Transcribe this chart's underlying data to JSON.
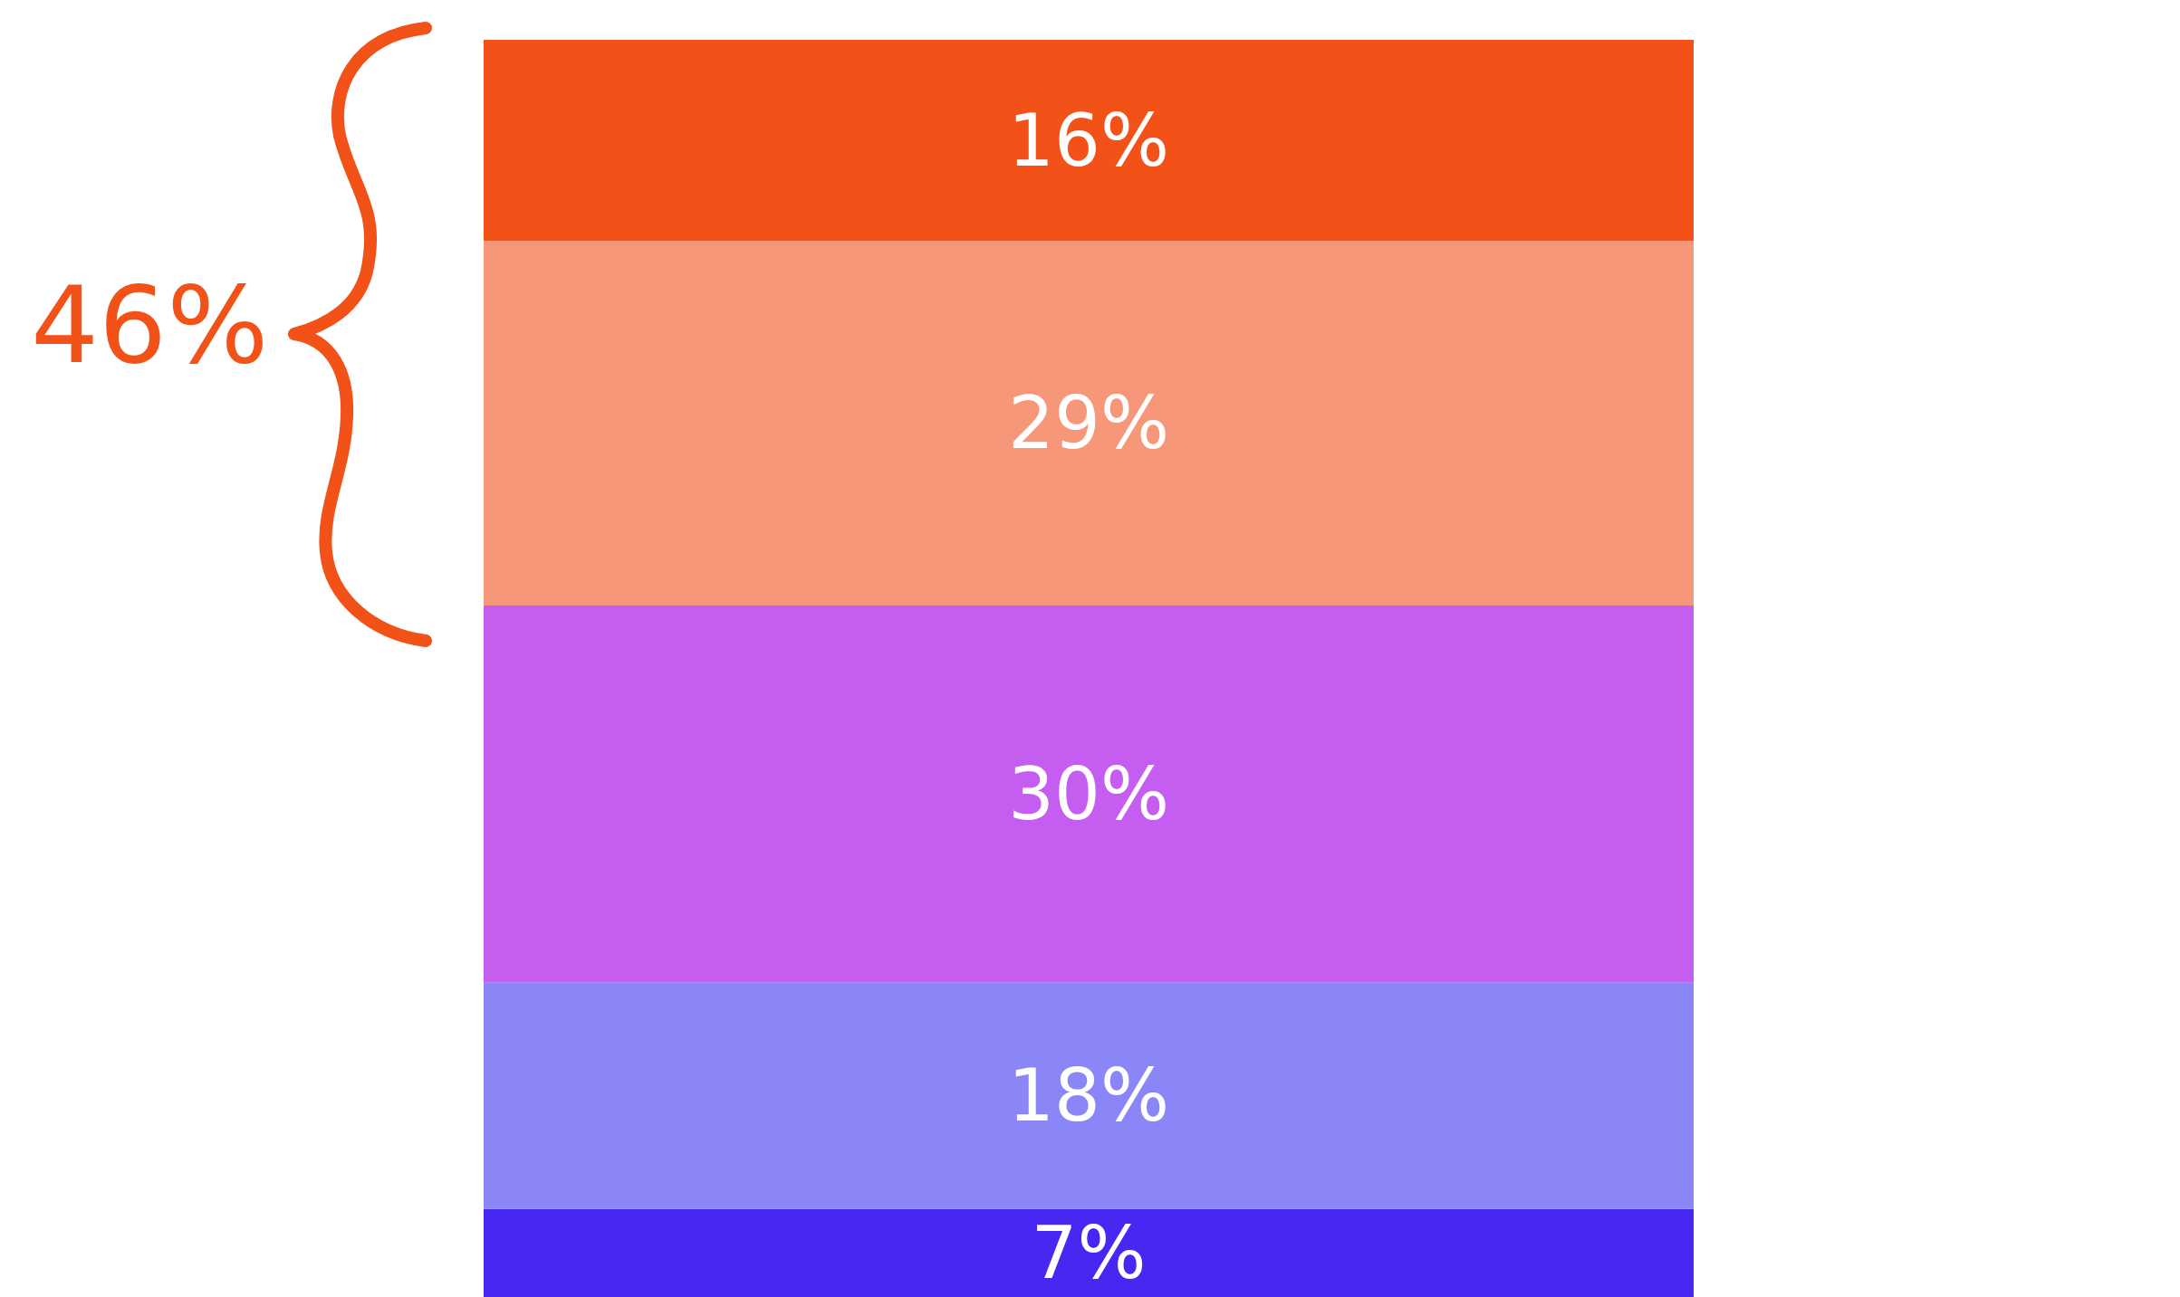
{
  "chart_data": {
    "type": "bar",
    "stacked": true,
    "categories": [
      null
    ],
    "series": [
      {
        "color": "#4628f2",
        "values": [
          7
        ],
        "value_labels": [
          "7%"
        ]
      },
      {
        "color": "#8b86f7",
        "values": [
          18
        ],
        "value_labels": [
          "18%"
        ]
      },
      {
        "color": "#c55ef0",
        "values": [
          30
        ],
        "value_labels": [
          "30%"
        ]
      },
      {
        "color": "#f7977a",
        "values": [
          29
        ],
        "value_labels": [
          "29%"
        ]
      },
      {
        "color": "#f25118",
        "values": [
          16
        ],
        "value_labels": [
          "16%"
        ]
      }
    ],
    "annotations": [
      "46%"
    ]
  }
}
